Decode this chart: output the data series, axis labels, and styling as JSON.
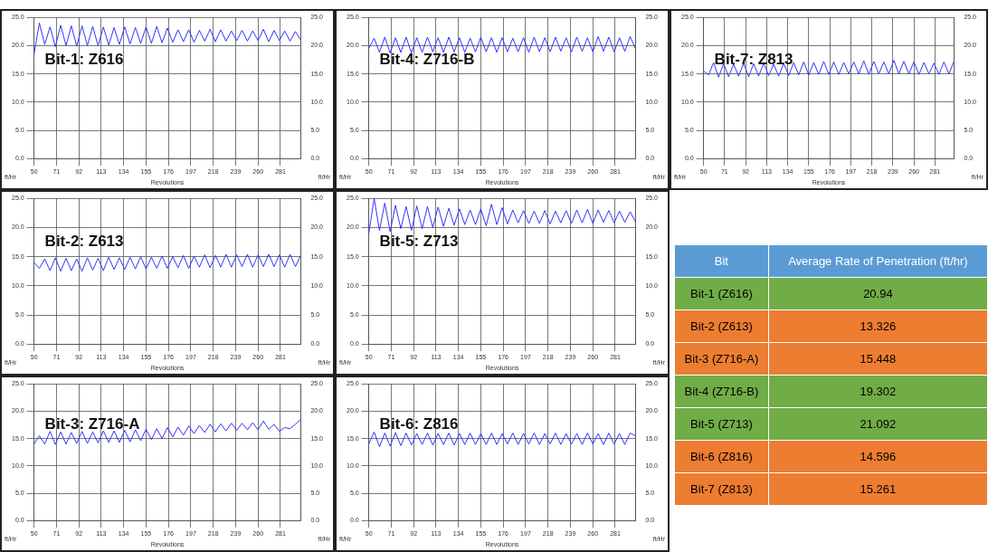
{
  "chart_data": [
    {
      "type": "line",
      "title": "Bit-1: Z616",
      "xlabel": "Revolutions",
      "ylabel": "ft/Hr",
      "y2label": "ft/Hr",
      "xlim": [
        50,
        300
      ],
      "xticks": [
        50,
        71,
        92,
        113,
        134,
        155,
        176,
        197,
        218,
        239,
        260,
        281
      ],
      "ylim": [
        0,
        25
      ],
      "yticks": [
        {
          "value": 0,
          "label": "0.0"
        },
        {
          "value": 5,
          "label": "5.0"
        },
        {
          "value": 10,
          "label": "10.0"
        },
        {
          "value": 15,
          "label": "15.0"
        },
        {
          "value": 20,
          "label": "20.0"
        },
        {
          "value": 25,
          "label": "25.0"
        }
      ],
      "y2lim": [
        0,
        25
      ],
      "y2ticks": [
        {
          "value": 0,
          "label": "0.0"
        },
        {
          "value": 5,
          "label": "5.0"
        },
        {
          "value": 10,
          "label": "10.0"
        },
        {
          "value": 15,
          "label": "15.0"
        },
        {
          "value": 20,
          "label": "20.0"
        },
        {
          "value": 25,
          "label": "25.0"
        }
      ],
      "grid": true,
      "marker": "none",
      "x": [
        50,
        55,
        60,
        65,
        70,
        75,
        80,
        85,
        90,
        95,
        100,
        105,
        110,
        115,
        120,
        125,
        130,
        135,
        140,
        145,
        150,
        155,
        160,
        165,
        170,
        175,
        180,
        185,
        190,
        195,
        200,
        205,
        210,
        215,
        220,
        225,
        230,
        235,
        240,
        245,
        250,
        255,
        260,
        265,
        270,
        275,
        280,
        285,
        290,
        295,
        300
      ],
      "series": [
        {
          "color": "#3333ff",
          "values": [
            18.5,
            24.0,
            20.2,
            23.3,
            19.8,
            23.6,
            20.0,
            23.5,
            19.9,
            23.5,
            20.0,
            23.4,
            20.0,
            23.3,
            20.1,
            23.2,
            20.2,
            23.3,
            20.3,
            23.2,
            20.4,
            23.3,
            20.4,
            23.4,
            20.5,
            23.1,
            20.6,
            22.8,
            20.7,
            22.8,
            20.6,
            22.7,
            20.8,
            22.9,
            20.7,
            22.8,
            20.8,
            22.6,
            20.9,
            22.7,
            20.8,
            22.6,
            20.9,
            22.9,
            20.7,
            22.7,
            20.9,
            22.6,
            20.8,
            22.5,
            21.0
          ]
        }
      ]
    },
    {
      "type": "line",
      "title": "Bit-4: Z716-B",
      "xlabel": "Revolutions",
      "ylabel": "ft/Hr",
      "y2label": "ft/Hr",
      "xlim": [
        50,
        300
      ],
      "xticks": [
        50,
        71,
        92,
        113,
        134,
        155,
        176,
        197,
        218,
        239,
        260,
        281
      ],
      "ylim": [
        0,
        25
      ],
      "yticks": [
        {
          "value": 0,
          "label": "0.0"
        },
        {
          "value": 5,
          "label": "5.0"
        },
        {
          "value": 10,
          "label": "10.0"
        },
        {
          "value": 15,
          "label": "15.0"
        },
        {
          "value": 20,
          "label": "20.0"
        },
        {
          "value": 25,
          "label": "25.0"
        }
      ],
      "y2lim": [
        0,
        25
      ],
      "y2ticks": [
        {
          "value": 0,
          "label": "0.0"
        },
        {
          "value": 5,
          "label": "5.0"
        },
        {
          "value": 10,
          "label": "10.0"
        },
        {
          "value": 15,
          "label": "15.0"
        },
        {
          "value": 20,
          "label": "20.0"
        },
        {
          "value": 25,
          "label": "25.0"
        }
      ],
      "grid": true,
      "marker": "none",
      "x": [
        50,
        55,
        60,
        65,
        70,
        75,
        80,
        85,
        90,
        95,
        100,
        105,
        110,
        115,
        120,
        125,
        130,
        135,
        140,
        145,
        150,
        155,
        160,
        165,
        170,
        175,
        180,
        185,
        190,
        195,
        200,
        205,
        210,
        215,
        220,
        225,
        230,
        235,
        240,
        245,
        250,
        255,
        260,
        265,
        270,
        275,
        280,
        285,
        290,
        295,
        300
      ],
      "series": [
        {
          "color": "#3333ff",
          "values": [
            19.5,
            21.3,
            18.8,
            21.5,
            18.7,
            21.4,
            18.8,
            21.5,
            18.7,
            21.4,
            18.8,
            21.5,
            18.9,
            21.4,
            18.8,
            21.5,
            18.9,
            21.4,
            18.8,
            21.3,
            18.9,
            21.5,
            18.9,
            21.4,
            18.8,
            21.4,
            18.9,
            21.3,
            18.9,
            21.4,
            18.8,
            21.5,
            18.9,
            21.4,
            18.9,
            21.5,
            19.0,
            21.4,
            18.9,
            21.5,
            19.0,
            21.4,
            18.9,
            21.6,
            19.0,
            21.5,
            18.9,
            21.4,
            19.0,
            21.6,
            19.5
          ]
        }
      ]
    },
    {
      "type": "line",
      "title": "Bit-7: Z813",
      "xlabel": "Revolutions",
      "ylabel": "ft/Hr",
      "y2label": "ft/Hr",
      "xlim": [
        50,
        300
      ],
      "xticks": [
        50,
        71,
        92,
        113,
        134,
        155,
        176,
        197,
        218,
        239,
        260,
        281
      ],
      "ylim": [
        0,
        25
      ],
      "yticks": [
        {
          "value": 0,
          "label": "0.0"
        },
        {
          "value": 5,
          "label": "5.0"
        },
        {
          "value": 10,
          "label": "10.0"
        },
        {
          "value": 15,
          "label": "15.0"
        },
        {
          "value": 20,
          "label": "20.0"
        },
        {
          "value": 25,
          "label": "25.0"
        }
      ],
      "y2lim": [
        0,
        25
      ],
      "y2ticks": [
        {
          "value": 0,
          "label": "0.0"
        },
        {
          "value": 5,
          "label": "5.0"
        },
        {
          "value": 10,
          "label": "10.0"
        },
        {
          "value": 15,
          "label": "15.0"
        },
        {
          "value": 20,
          "label": "20.0"
        },
        {
          "value": 25,
          "label": "25.0"
        }
      ],
      "grid": true,
      "marker": "none",
      "x": [
        50,
        55,
        60,
        65,
        70,
        75,
        80,
        85,
        90,
        95,
        100,
        105,
        110,
        115,
        120,
        125,
        130,
        135,
        140,
        145,
        150,
        155,
        160,
        165,
        170,
        175,
        180,
        185,
        190,
        195,
        200,
        205,
        210,
        215,
        220,
        225,
        230,
        235,
        240,
        245,
        250,
        255,
        260,
        265,
        270,
        275,
        280,
        285,
        290,
        295,
        300
      ],
      "series": [
        {
          "color": "#3333ff",
          "values": [
            15.5,
            14.8,
            17.0,
            14.4,
            16.8,
            14.5,
            16.7,
            14.6,
            16.9,
            14.5,
            16.8,
            14.6,
            16.9,
            14.7,
            16.7,
            14.6,
            16.9,
            14.7,
            17.0,
            14.8,
            17.1,
            14.8,
            17.0,
            14.9,
            17.2,
            14.9,
            17.1,
            14.9,
            17.0,
            15.0,
            17.1,
            15.0,
            17.3,
            14.9,
            17.2,
            15.0,
            17.1,
            15.0,
            17.4,
            15.0,
            17.2,
            15.0,
            17.1,
            14.9,
            17.0,
            15.0,
            16.9,
            14.9,
            17.1,
            15.0,
            17.2
          ]
        }
      ]
    },
    {
      "type": "line",
      "title": "Bit-2: Z613",
      "xlabel": "Revolutions",
      "ylabel": "ft/Hr",
      "y2label": "ft/Hr",
      "xlim": [
        50,
        300
      ],
      "xticks": [
        50,
        71,
        92,
        113,
        134,
        155,
        176,
        197,
        218,
        239,
        260,
        281
      ],
      "ylim": [
        0,
        25
      ],
      "yticks": [
        {
          "value": 0,
          "label": "0.0"
        },
        {
          "value": 5,
          "label": "5.0"
        },
        {
          "value": 10,
          "label": "10.0"
        },
        {
          "value": 15,
          "label": "15.0"
        },
        {
          "value": 20,
          "label": "20.0"
        },
        {
          "value": 25,
          "label": "25.0"
        }
      ],
      "y2lim": [
        0,
        25
      ],
      "y2ticks": [
        {
          "value": 0,
          "label": "0.0"
        },
        {
          "value": 5,
          "label": "5.0"
        },
        {
          "value": 10,
          "label": "10.0"
        },
        {
          "value": 15,
          "label": "15.0"
        },
        {
          "value": 20,
          "label": "20.0"
        },
        {
          "value": 25,
          "label": "25.0"
        }
      ],
      "grid": true,
      "marker": "none",
      "x": [
        50,
        55,
        60,
        65,
        70,
        75,
        80,
        85,
        90,
        95,
        100,
        105,
        110,
        115,
        120,
        125,
        130,
        135,
        140,
        145,
        150,
        155,
        160,
        165,
        170,
        175,
        180,
        185,
        190,
        195,
        200,
        205,
        210,
        215,
        220,
        225,
        230,
        235,
        240,
        245,
        250,
        255,
        260,
        265,
        270,
        275,
        280,
        285,
        290,
        295,
        300
      ],
      "series": [
        {
          "color": "#3333ff",
          "values": [
            14.0,
            13.0,
            14.6,
            12.6,
            14.8,
            12.5,
            14.7,
            12.6,
            14.6,
            12.5,
            14.8,
            12.7,
            14.7,
            12.6,
            14.9,
            12.8,
            14.8,
            12.8,
            14.9,
            12.9,
            15.0,
            12.9,
            14.9,
            13.0,
            15.1,
            13.0,
            15.0,
            13.1,
            15.2,
            13.0,
            15.1,
            13.2,
            15.3,
            13.1,
            15.2,
            13.2,
            15.4,
            13.2,
            15.3,
            13.3,
            15.4,
            13.2,
            15.3,
            13.3,
            15.4,
            13.3,
            15.3,
            13.2,
            15.4,
            13.3,
            15.2
          ]
        }
      ]
    },
    {
      "type": "line",
      "title": "Bit-5: Z713",
      "xlabel": "Revolutions",
      "ylabel": "ft/Hr",
      "y2label": "ft/Hr",
      "xlim": [
        50,
        300
      ],
      "xticks": [
        50,
        71,
        92,
        113,
        134,
        155,
        176,
        197,
        218,
        239,
        260,
        281
      ],
      "ylim": [
        0,
        25
      ],
      "yticks": [
        {
          "value": 0,
          "label": "0.0"
        },
        {
          "value": 5,
          "label": "5.0"
        },
        {
          "value": 10,
          "label": "10.0"
        },
        {
          "value": 15,
          "label": "15.0"
        },
        {
          "value": 20,
          "label": "20.0"
        },
        {
          "value": 25,
          "label": "25.0"
        }
      ],
      "y2lim": [
        0,
        25
      ],
      "y2ticks": [
        {
          "value": 0,
          "label": "0.0"
        },
        {
          "value": 5,
          "label": "5.0"
        },
        {
          "value": 10,
          "label": "10.0"
        },
        {
          "value": 15,
          "label": "15.0"
        },
        {
          "value": 20,
          "label": "20.0"
        },
        {
          "value": 25,
          "label": "25.0"
        }
      ],
      "grid": true,
      "marker": "none",
      "x": [
        50,
        55,
        60,
        65,
        70,
        75,
        80,
        85,
        90,
        95,
        100,
        105,
        110,
        115,
        120,
        125,
        130,
        135,
        140,
        145,
        150,
        155,
        160,
        165,
        170,
        175,
        180,
        185,
        190,
        195,
        200,
        205,
        210,
        215,
        220,
        225,
        230,
        235,
        240,
        245,
        250,
        255,
        260,
        265,
        270,
        275,
        280,
        285,
        290,
        295,
        300
      ],
      "series": [
        {
          "color": "#3333ff",
          "values": [
            19.0,
            25.0,
            19.5,
            24.2,
            19.3,
            23.8,
            19.8,
            23.6,
            19.5,
            23.7,
            19.8,
            23.6,
            20.0,
            23.5,
            20.2,
            23.3,
            20.4,
            23.2,
            20.5,
            23.0,
            20.5,
            23.2,
            20.3,
            24.0,
            20.5,
            23.4,
            20.6,
            23.0,
            20.8,
            22.9,
            20.7,
            22.8,
            20.7,
            22.9,
            20.6,
            22.8,
            20.8,
            22.9,
            20.7,
            23.0,
            20.8,
            23.1,
            20.7,
            23.0,
            20.9,
            22.9,
            20.8,
            22.8,
            20.9,
            22.7,
            21.0
          ]
        }
      ]
    },
    {
      "type": "other",
      "xlabel": "Bit",
      "ylabel": "Average Rate of Penetration (ft/hr)",
      "categories": [
        "Bit-1 (Z616)",
        "Bit-2 (Z613)",
        "Bit-3 (Z716-A)",
        "Bit-4 (Z716-B)",
        "Bit-5 (Z713)",
        "Bit-6 (Z816)",
        "Bit-7 (Z813)"
      ],
      "values": [
        20.94,
        13.326,
        15.448,
        19.302,
        21.092,
        14.596,
        15.261
      ],
      "colors": [
        "#70ad47",
        "#ed7d31",
        "#ed7d31",
        "#70ad47",
        "#70ad47",
        "#ed7d31",
        "#ed7d31"
      ],
      "data_labels": true
    },
    {
      "type": "line",
      "title": "Bit-3: Z716-A",
      "xlabel": "Revolutions",
      "ylabel": "ft/Hr",
      "y2label": "ft/Hr",
      "xlim": [
        50,
        300
      ],
      "xticks": [
        50,
        71,
        92,
        113,
        134,
        155,
        176,
        197,
        218,
        239,
        260,
        281
      ],
      "ylim": [
        0,
        25
      ],
      "yticks": [
        {
          "value": 0,
          "label": "0.0"
        },
        {
          "value": 5,
          "label": "5.0"
        },
        {
          "value": 10,
          "label": "10.0"
        },
        {
          "value": 15,
          "label": "15.0"
        },
        {
          "value": 20,
          "label": "20.0"
        },
        {
          "value": 25,
          "label": "25.0"
        }
      ],
      "y2lim": [
        0,
        25
      ],
      "y2ticks": [
        {
          "value": 0,
          "label": "0.0"
        },
        {
          "value": 5,
          "label": "5.0"
        },
        {
          "value": 10,
          "label": "10.0"
        },
        {
          "value": 15,
          "label": "15.0"
        },
        {
          "value": 20,
          "label": "20.0"
        },
        {
          "value": 25,
          "label": "25.0"
        }
      ],
      "grid": true,
      "marker": "none",
      "x": [
        50,
        55,
        60,
        65,
        70,
        75,
        80,
        85,
        90,
        95,
        100,
        105,
        110,
        115,
        120,
        125,
        130,
        135,
        140,
        145,
        150,
        155,
        160,
        165,
        170,
        175,
        180,
        185,
        190,
        195,
        200,
        205,
        210,
        215,
        220,
        225,
        230,
        235,
        240,
        245,
        250,
        255,
        260,
        265,
        270,
        275,
        280,
        285,
        290,
        295,
        300
      ],
      "series": [
        {
          "color": "#3333ff",
          "values": [
            14.0,
            15.5,
            14.0,
            16.3,
            13.9,
            16.2,
            14.0,
            16.1,
            14.1,
            16.3,
            14.1,
            16.2,
            14.2,
            16.4,
            14.3,
            16.4,
            14.3,
            16.5,
            14.4,
            16.6,
            14.6,
            16.7,
            14.8,
            16.8,
            15.0,
            17.0,
            15.3,
            17.1,
            15.6,
            17.3,
            15.9,
            17.4,
            16.1,
            17.6,
            16.2,
            17.7,
            16.4,
            17.8,
            16.5,
            17.8,
            16.6,
            17.9,
            16.6,
            18.2,
            16.7,
            17.6,
            16.3,
            17.0,
            16.8,
            17.6,
            18.5
          ]
        }
      ]
    },
    {
      "type": "line",
      "title": "Bit-6: Z816",
      "xlabel": "Revolutions",
      "ylabel": "ft/Hr",
      "y2label": "ft/Hr",
      "xlim": [
        50,
        300
      ],
      "xticks": [
        50,
        71,
        92,
        113,
        134,
        155,
        176,
        197,
        218,
        239,
        260,
        281
      ],
      "ylim": [
        0,
        25
      ],
      "yticks": [
        {
          "value": 0,
          "label": "0.0"
        },
        {
          "value": 5,
          "label": "5.0"
        },
        {
          "value": 10,
          "label": "10.0"
        },
        {
          "value": 15,
          "label": "15.0"
        },
        {
          "value": 20,
          "label": "20.0"
        },
        {
          "value": 25,
          "label": "25.0"
        }
      ],
      "y2lim": [
        0,
        25
      ],
      "y2ticks": [
        {
          "value": 0,
          "label": "0.0"
        },
        {
          "value": 5,
          "label": "5.0"
        },
        {
          "value": 10,
          "label": "10.0"
        },
        {
          "value": 15,
          "label": "15.0"
        },
        {
          "value": 20,
          "label": "20.0"
        },
        {
          "value": 25,
          "label": "25.0"
        }
      ],
      "grid": true,
      "marker": "none",
      "x": [
        50,
        55,
        60,
        65,
        70,
        75,
        80,
        85,
        90,
        95,
        100,
        105,
        110,
        115,
        120,
        125,
        130,
        135,
        140,
        145,
        150,
        155,
        160,
        165,
        170,
        175,
        180,
        185,
        190,
        195,
        200,
        205,
        210,
        215,
        220,
        225,
        230,
        235,
        240,
        245,
        250,
        255,
        260,
        265,
        270,
        275,
        280,
        285,
        290,
        295,
        300
      ],
      "series": [
        {
          "color": "#3333ff",
          "values": [
            14.0,
            16.2,
            13.5,
            16.0,
            13.6,
            16.1,
            13.7,
            16.0,
            13.8,
            15.9,
            13.9,
            16.0,
            13.8,
            15.9,
            13.9,
            16.0,
            13.8,
            15.9,
            13.9,
            16.0,
            13.9,
            15.9,
            13.9,
            16.0,
            13.9,
            15.9,
            14.0,
            16.0,
            13.9,
            15.9,
            14.0,
            16.0,
            13.9,
            15.9,
            14.0,
            16.0,
            13.9,
            15.9,
            14.0,
            15.9,
            13.9,
            16.0,
            14.0,
            15.9,
            13.9,
            16.0,
            14.0,
            15.9,
            13.9,
            16.0,
            15.5
          ]
        }
      ]
    }
  ]
}
